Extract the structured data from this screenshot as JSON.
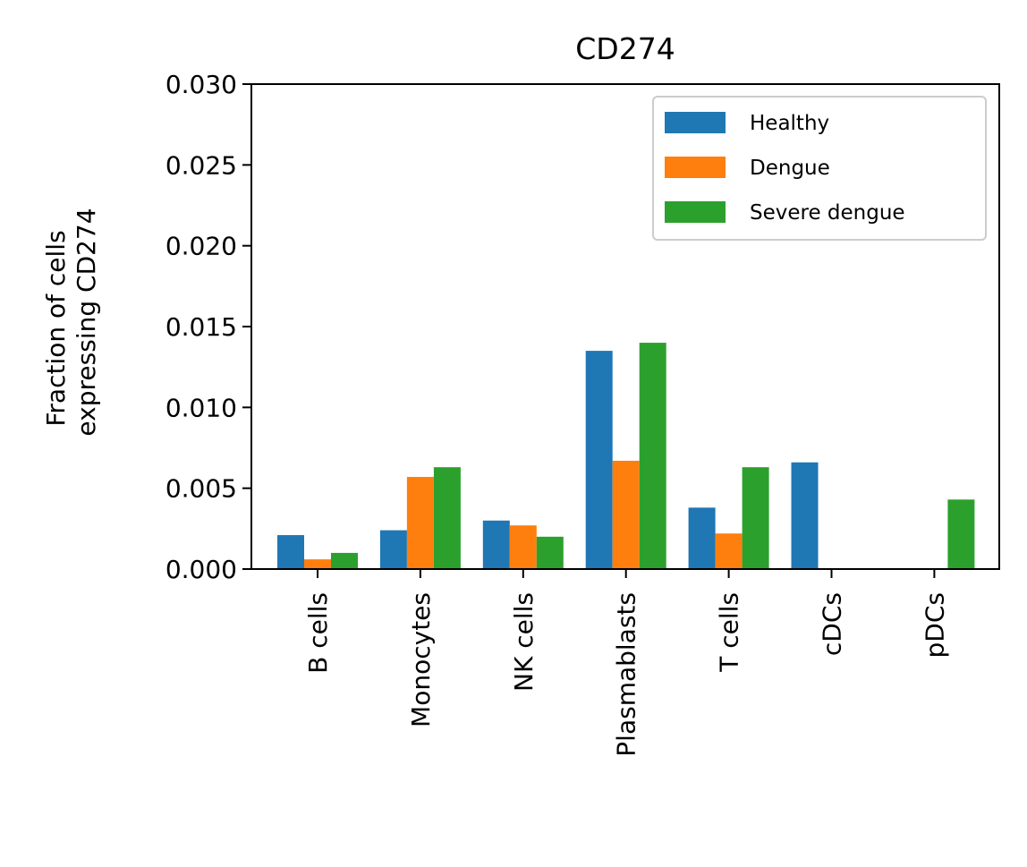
{
  "chart_data": {
    "type": "bar",
    "title": "CD274",
    "xlabel": "",
    "ylabel_lines": [
      "Fraction of cells",
      "expressing CD274"
    ],
    "ylim": [
      0,
      0.03
    ],
    "yticks": [
      "0.000",
      "0.005",
      "0.010",
      "0.015",
      "0.020",
      "0.025",
      "0.030"
    ],
    "ytick_values": [
      0,
      0.005,
      0.01,
      0.015,
      0.02,
      0.025,
      0.03
    ],
    "categories": [
      "B cells",
      "Monocytes",
      "NK cells",
      "Plasmablasts",
      "T cells",
      "cDCs",
      "pDCs"
    ],
    "series": [
      {
        "name": "Healthy",
        "color": "#1f77b4",
        "values": [
          0.0021,
          0.0024,
          0.003,
          0.0135,
          0.0038,
          0.0066,
          0.0
        ]
      },
      {
        "name": "Dengue",
        "color": "#ff7f0e",
        "values": [
          0.0006,
          0.0057,
          0.0027,
          0.0067,
          0.0022,
          0.0,
          0.0
        ]
      },
      {
        "name": "Severe dengue",
        "color": "#2ca02c",
        "values": [
          0.001,
          0.0063,
          0.002,
          0.014,
          0.0063,
          0.0,
          0.0043
        ]
      }
    ],
    "grid": false,
    "legend": "top-right"
  }
}
